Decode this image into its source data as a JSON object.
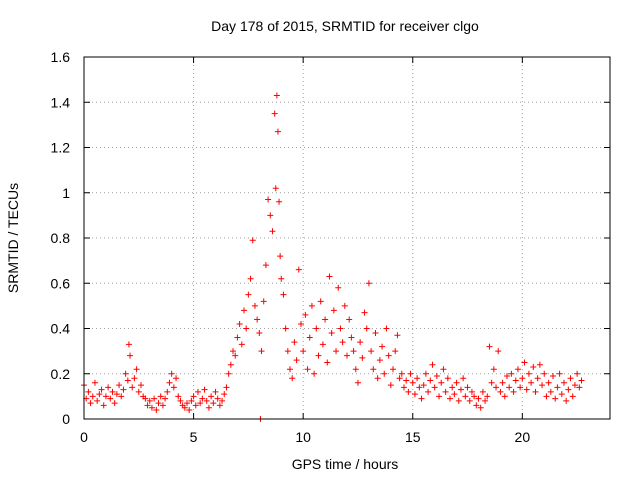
{
  "chart_data": {
    "type": "scatter",
    "title": "Day 178 of 2015, SRMTID for receiver clgo",
    "xlabel": "GPS time / hours",
    "ylabel": "SRMTID / TECUs",
    "xlim": [
      0,
      24
    ],
    "ylim": [
      0,
      1.6
    ],
    "x_ticks": [
      0,
      5,
      10,
      15,
      20
    ],
    "x_tick_labels": [
      "0",
      "5",
      "10",
      "15",
      "20"
    ],
    "y_ticks": [
      0,
      0.2,
      0.4,
      0.6,
      0.8,
      1.0,
      1.2,
      1.4,
      1.6
    ],
    "y_tick_labels": [
      "0",
      "0.2",
      "0.4",
      "0.6",
      "0.8",
      "1",
      "1.2",
      "1.4",
      "1.6"
    ],
    "grid": true,
    "marker": "+",
    "series": [
      {
        "name": "SRMTID",
        "color": "#ff0000",
        "points": [
          [
            0.0,
            0.15
          ],
          [
            0.1,
            0.09
          ],
          [
            0.2,
            0.12
          ],
          [
            0.3,
            0.07
          ],
          [
            0.4,
            0.1
          ],
          [
            0.5,
            0.16
          ],
          [
            0.6,
            0.08
          ],
          [
            0.7,
            0.11
          ],
          [
            0.8,
            0.13
          ],
          [
            0.9,
            0.06
          ],
          [
            1.0,
            0.1
          ],
          [
            1.1,
            0.14
          ],
          [
            1.2,
            0.09
          ],
          [
            1.3,
            0.12
          ],
          [
            1.4,
            0.07
          ],
          [
            1.5,
            0.11
          ],
          [
            1.6,
            0.15
          ],
          [
            1.7,
            0.1
          ],
          [
            1.8,
            0.13
          ],
          [
            1.9,
            0.2
          ],
          [
            2.0,
            0.17
          ],
          [
            2.05,
            0.33
          ],
          [
            2.1,
            0.28
          ],
          [
            2.2,
            0.14
          ],
          [
            2.3,
            0.18
          ],
          [
            2.4,
            0.22
          ],
          [
            2.5,
            0.12
          ],
          [
            2.6,
            0.15
          ],
          [
            2.7,
            0.1
          ],
          [
            2.8,
            0.09
          ],
          [
            2.9,
            0.06
          ],
          [
            3.0,
            0.08
          ],
          [
            3.1,
            0.05
          ],
          [
            3.2,
            0.09
          ],
          [
            3.3,
            0.04
          ],
          [
            3.4,
            0.07
          ],
          [
            3.5,
            0.1
          ],
          [
            3.6,
            0.06
          ],
          [
            3.7,
            0.09
          ],
          [
            3.8,
            0.12
          ],
          [
            3.9,
            0.16
          ],
          [
            4.0,
            0.2
          ],
          [
            4.1,
            0.14
          ],
          [
            4.2,
            0.18
          ],
          [
            4.3,
            0.1
          ],
          [
            4.4,
            0.08
          ],
          [
            4.5,
            0.06
          ],
          [
            4.6,
            0.05
          ],
          [
            4.7,
            0.07
          ],
          [
            4.8,
            0.04
          ],
          [
            4.9,
            0.08
          ],
          [
            5.0,
            0.1
          ],
          [
            5.1,
            0.06
          ],
          [
            5.2,
            0.12
          ],
          [
            5.3,
            0.07
          ],
          [
            5.4,
            0.09
          ],
          [
            5.5,
            0.13
          ],
          [
            5.6,
            0.08
          ],
          [
            5.7,
            0.05
          ],
          [
            5.8,
            0.1
          ],
          [
            5.9,
            0.07
          ],
          [
            6.0,
            0.12
          ],
          [
            6.1,
            0.09
          ],
          [
            6.2,
            0.06
          ],
          [
            6.3,
            0.08
          ],
          [
            6.4,
            0.11
          ],
          [
            6.5,
            0.14
          ],
          [
            6.6,
            0.2
          ],
          [
            6.7,
            0.24
          ],
          [
            6.8,
            0.3
          ],
          [
            6.9,
            0.28
          ],
          [
            7.0,
            0.36
          ],
          [
            7.1,
            0.42
          ],
          [
            7.2,
            0.33
          ],
          [
            7.3,
            0.48
          ],
          [
            7.4,
            0.4
          ],
          [
            7.5,
            0.55
          ],
          [
            7.6,
            0.62
          ],
          [
            7.7,
            0.79
          ],
          [
            7.8,
            0.5
          ],
          [
            7.9,
            0.44
          ],
          [
            8.0,
            0.38
          ],
          [
            8.05,
            0.0
          ],
          [
            8.1,
            0.3
          ],
          [
            8.2,
            0.52
          ],
          [
            8.3,
            0.68
          ],
          [
            8.4,
            0.97
          ],
          [
            8.5,
            0.9
          ],
          [
            8.6,
            0.83
          ],
          [
            8.7,
            1.35
          ],
          [
            8.75,
            1.02
          ],
          [
            8.8,
            1.43
          ],
          [
            8.85,
            1.27
          ],
          [
            8.9,
            0.96
          ],
          [
            8.95,
            0.72
          ],
          [
            9.0,
            0.62
          ],
          [
            9.1,
            0.55
          ],
          [
            9.2,
            0.4
          ],
          [
            9.3,
            0.3
          ],
          [
            9.4,
            0.22
          ],
          [
            9.5,
            0.18
          ],
          [
            9.6,
            0.34
          ],
          [
            9.7,
            0.26
          ],
          [
            9.8,
            0.66
          ],
          [
            9.9,
            0.42
          ],
          [
            10.0,
            0.3
          ],
          [
            10.1,
            0.46
          ],
          [
            10.2,
            0.22
          ],
          [
            10.3,
            0.36
          ],
          [
            10.4,
            0.5
          ],
          [
            10.5,
            0.2
          ],
          [
            10.6,
            0.4
          ],
          [
            10.7,
            0.28
          ],
          [
            10.8,
            0.52
          ],
          [
            10.9,
            0.33
          ],
          [
            11.0,
            0.44
          ],
          [
            11.1,
            0.25
          ],
          [
            11.2,
            0.63
          ],
          [
            11.3,
            0.38
          ],
          [
            11.4,
            0.48
          ],
          [
            11.5,
            0.3
          ],
          [
            11.6,
            0.58
          ],
          [
            11.7,
            0.4
          ],
          [
            11.8,
            0.34
          ],
          [
            11.9,
            0.5
          ],
          [
            12.0,
            0.28
          ],
          [
            12.1,
            0.44
          ],
          [
            12.2,
            0.36
          ],
          [
            12.3,
            0.3
          ],
          [
            12.4,
            0.22
          ],
          [
            12.5,
            0.16
          ],
          [
            12.6,
            0.34
          ],
          [
            12.7,
            0.27
          ],
          [
            12.8,
            0.47
          ],
          [
            12.9,
            0.4
          ],
          [
            13.0,
            0.6
          ],
          [
            13.1,
            0.3
          ],
          [
            13.2,
            0.22
          ],
          [
            13.3,
            0.38
          ],
          [
            13.4,
            0.18
          ],
          [
            13.5,
            0.26
          ],
          [
            13.6,
            0.32
          ],
          [
            13.7,
            0.2
          ],
          [
            13.8,
            0.4
          ],
          [
            13.9,
            0.28
          ],
          [
            14.0,
            0.15
          ],
          [
            14.1,
            0.22
          ],
          [
            14.2,
            0.3
          ],
          [
            14.3,
            0.37
          ],
          [
            14.4,
            0.18
          ],
          [
            14.5,
            0.2
          ],
          [
            14.6,
            0.14
          ],
          [
            14.7,
            0.17
          ],
          [
            14.8,
            0.12
          ],
          [
            14.9,
            0.2
          ],
          [
            15.0,
            0.16
          ],
          [
            15.1,
            0.11
          ],
          [
            15.2,
            0.18
          ],
          [
            15.3,
            0.14
          ],
          [
            15.4,
            0.09
          ],
          [
            15.5,
            0.15
          ],
          [
            15.6,
            0.2
          ],
          [
            15.7,
            0.12
          ],
          [
            15.8,
            0.17
          ],
          [
            15.9,
            0.24
          ],
          [
            16.0,
            0.14
          ],
          [
            16.1,
            0.19
          ],
          [
            16.2,
            0.1
          ],
          [
            16.3,
            0.16
          ],
          [
            16.4,
            0.22
          ],
          [
            16.5,
            0.12
          ],
          [
            16.6,
            0.18
          ],
          [
            16.7,
            0.09
          ],
          [
            16.8,
            0.14
          ],
          [
            16.9,
            0.11
          ],
          [
            17.0,
            0.16
          ],
          [
            17.1,
            0.08
          ],
          [
            17.2,
            0.13
          ],
          [
            17.3,
            0.18
          ],
          [
            17.4,
            0.1
          ],
          [
            17.5,
            0.14
          ],
          [
            17.6,
            0.08
          ],
          [
            17.7,
            0.12
          ],
          [
            17.8,
            0.1
          ],
          [
            17.9,
            0.06
          ],
          [
            18.0,
            0.09
          ],
          [
            18.1,
            0.05
          ],
          [
            18.2,
            0.12
          ],
          [
            18.3,
            0.08
          ],
          [
            18.4,
            0.1
          ],
          [
            18.5,
            0.32
          ],
          [
            18.6,
            0.16
          ],
          [
            18.7,
            0.22
          ],
          [
            18.8,
            0.14
          ],
          [
            18.9,
            0.3
          ],
          [
            19.0,
            0.12
          ],
          [
            19.1,
            0.16
          ],
          [
            19.2,
            0.1
          ],
          [
            19.3,
            0.19
          ],
          [
            19.4,
            0.14
          ],
          [
            19.5,
            0.2
          ],
          [
            19.6,
            0.12
          ],
          [
            19.7,
            0.17
          ],
          [
            19.8,
            0.22
          ],
          [
            19.9,
            0.14
          ],
          [
            20.0,
            0.18
          ],
          [
            20.1,
            0.25
          ],
          [
            20.2,
            0.13
          ],
          [
            20.3,
            0.2
          ],
          [
            20.4,
            0.16
          ],
          [
            20.5,
            0.23
          ],
          [
            20.6,
            0.12
          ],
          [
            20.7,
            0.18
          ],
          [
            20.8,
            0.24
          ],
          [
            20.9,
            0.15
          ],
          [
            21.0,
            0.2
          ],
          [
            21.1,
            0.1
          ],
          [
            21.2,
            0.16
          ],
          [
            21.3,
            0.12
          ],
          [
            21.4,
            0.19
          ],
          [
            21.5,
            0.09
          ],
          [
            21.6,
            0.14
          ],
          [
            21.7,
            0.2
          ],
          [
            21.8,
            0.11
          ],
          [
            21.9,
            0.16
          ],
          [
            22.0,
            0.08
          ],
          [
            22.1,
            0.13
          ],
          [
            22.2,
            0.18
          ],
          [
            22.3,
            0.1
          ],
          [
            22.4,
            0.15
          ],
          [
            22.5,
            0.2
          ],
          [
            22.6,
            0.14
          ],
          [
            22.7,
            0.17
          ]
        ]
      }
    ]
  }
}
